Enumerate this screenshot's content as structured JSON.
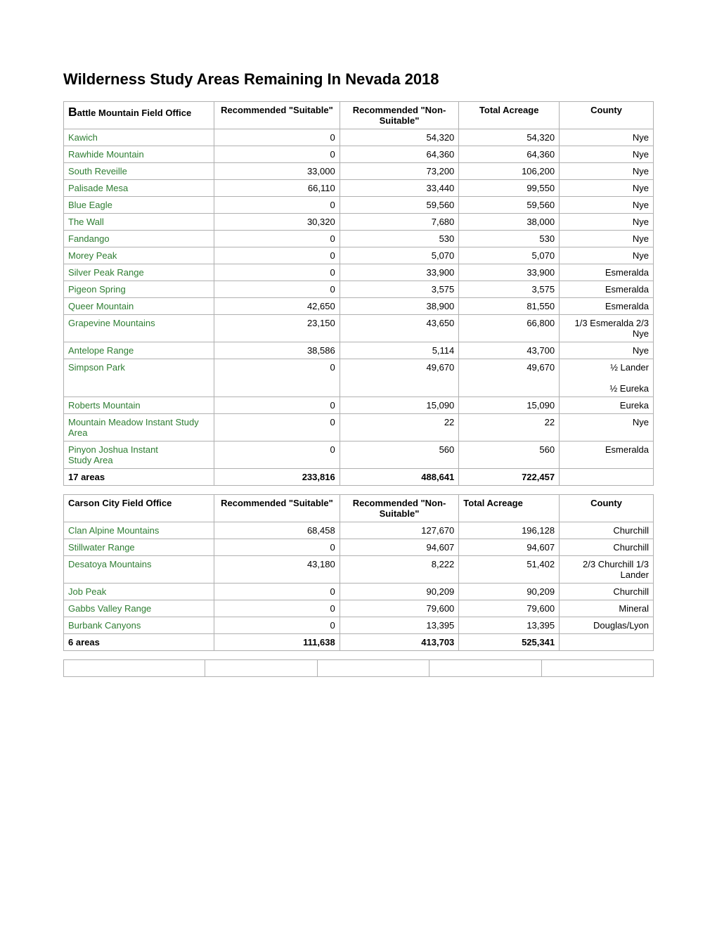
{
  "page_title": "Wilderness Study Areas Remaining In Nevada 2018",
  "tables": [
    {
      "office": "Battle Mountain Field Office",
      "cols": [
        "Recommended \"Suitable\"",
        "Recommended \"Non-Suitable\"",
        "Total Acreage",
        "County"
      ],
      "rows": [
        {
          "name": "Kawich",
          "suit": "0",
          "nonsuit": "54,320",
          "total": "54,320",
          "county": "Nye"
        },
        {
          "name": "Rawhide Mountain",
          "suit": "0",
          "nonsuit": "64,360",
          "total": "64,360",
          "county": "Nye"
        },
        {
          "name": "South Reveille",
          "suit": "33,000",
          "nonsuit": "73,200",
          "total": "106,200",
          "county": "Nye"
        },
        {
          "name": "Palisade Mesa",
          "suit": "66,110",
          "nonsuit": "33,440",
          "total": "99,550",
          "county": "Nye"
        },
        {
          "name": "Blue Eagle",
          "suit": "0",
          "nonsuit": "59,560",
          "total": "59,560",
          "county": "Nye"
        },
        {
          "name": "The Wall",
          "suit": "30,320",
          "nonsuit": "7,680",
          "total": "38,000",
          "county": "Nye"
        },
        {
          "name": "Fandango",
          "suit": "0",
          "nonsuit": "530",
          "total": "530",
          "county": "Nye"
        },
        {
          "name": "Morey Peak",
          "suit": "0",
          "nonsuit": "5,070",
          "total": "5,070",
          "county": "Nye"
        },
        {
          "name": "Silver Peak Range",
          "suit": "0",
          "nonsuit": "33,900",
          "total": "33,900",
          "county": "Esmeralda"
        },
        {
          "name": "Pigeon Spring",
          "suit": "0",
          "nonsuit": "3,575",
          "total": "3,575",
          "county": "Esmeralda"
        },
        {
          "name": "Queer Mountain",
          "suit": "42,650",
          "nonsuit": "38,900",
          "total": "81,550",
          "county": "Esmeralda"
        },
        {
          "name": "Grapevine Mountains",
          "suit": "23,150",
          "nonsuit": "43,650",
          "total": "66,800",
          "county": "1/3 Esmeralda 2/3 Nye"
        },
        {
          "name": "Antelope Range",
          "suit": "38,586",
          "nonsuit": "5,114",
          "total": "43,700",
          "county": "Nye"
        },
        {
          "name": "Simpson Park",
          "suit": "0",
          "nonsuit": "49,670",
          "total": "49,670",
          "county": "½ Lander\n\n½ Eureka"
        },
        {
          "name": "Roberts Mountain",
          "suit": "0",
          "nonsuit": "15,090",
          "total": "15,090",
          "county": "Eureka"
        },
        {
          "name": "Mountain Meadow Instant Study Area",
          "suit": "0",
          "nonsuit": "22",
          "total": "22",
          "county": "Nye"
        },
        {
          "name": "Pinyon Joshua Instant\nStudy Area",
          "suit": "0",
          "nonsuit": "560",
          "total": "560",
          "county": "Esmeralda"
        }
      ],
      "total": {
        "name": "17 areas",
        "suit": "233,816",
        "nonsuit": "488,641",
        "total": "722,457",
        "county": ""
      }
    },
    {
      "office": "Carson City Field Office",
      "cols": [
        "Recommended \"Suitable\"",
        "Recommended \"Non-Suitable\"",
        "Total Acreage",
        "County"
      ],
      "rows": [
        {
          "name": "Clan Alpine Mountains",
          "suit": "68,458",
          "nonsuit": "127,670",
          "total": "196,128",
          "county": "Churchill"
        },
        {
          "name": "Stillwater Range",
          "suit": "0",
          "nonsuit": "94,607",
          "total": "94,607",
          "county": "Churchill"
        },
        {
          "name": "Desatoya Mountains",
          "suit": "43,180",
          "nonsuit": "8,222",
          "total": "51,402",
          "county": "2/3 Churchill 1/3 Lander"
        },
        {
          "name": "Job Peak",
          "suit": "0",
          "nonsuit": "90,209",
          "total": "90,209",
          "county": "Churchill"
        },
        {
          "name": "Gabbs Valley Range",
          "suit": "0",
          "nonsuit": "79,600",
          "total": "79,600",
          "county": "Mineral"
        },
        {
          "name": "Burbank Canyons",
          "suit": "0",
          "nonsuit": "13,395",
          "total": "13,395",
          "county": "Douglas/Lyon"
        }
      ],
      "total": {
        "name": "6 areas",
        "suit": "111,638",
        "nonsuit": "413,703",
        "total": "525,341",
        "county": ""
      }
    }
  ]
}
